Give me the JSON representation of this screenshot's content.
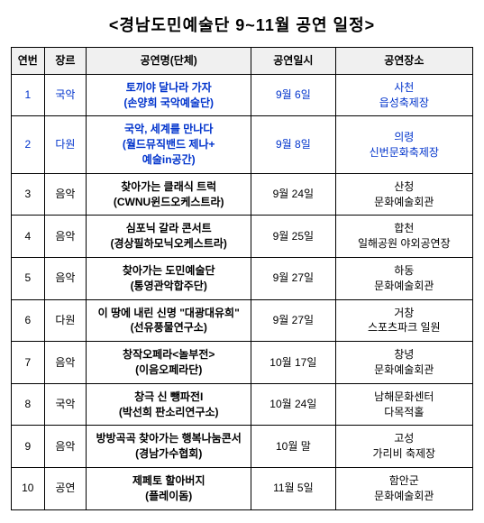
{
  "title": "<경남도민예술단 9~11월 공연 일정>",
  "columns": [
    "연번",
    "장르",
    "공연명(단체)",
    "공연일시",
    "공연장소"
  ],
  "rows": [
    {
      "no": "1",
      "genre": "국악",
      "main": "토끼야 달나라 가자",
      "sub": "(손양희 국악예술단)",
      "date": "9월 6일",
      "venueA": "사천",
      "venueB": "읍성축제장",
      "blue": true
    },
    {
      "no": "2",
      "genre": "다원",
      "main": "국악, 세계를 만나다",
      "sub": "(월드뮤직밴드 제나+\n예술in공간)",
      "date": "9월 8일",
      "venueA": "의령",
      "venueB": "신번문화축제장",
      "blue": true
    },
    {
      "no": "3",
      "genre": "음악",
      "main": "찾아가는 클래식 트럭",
      "sub": "(CWNU윈드오케스트라)",
      "date": "9월 24일",
      "venueA": "산청",
      "venueB": "문화예술회관",
      "blue": false
    },
    {
      "no": "4",
      "genre": "음악",
      "main": "심포닉 갈라 콘서트",
      "sub": "(경상필하모닉오케스트라)",
      "date": "9월 25일",
      "venueA": "합천",
      "venueB": "일해공원 야외공연장",
      "blue": false
    },
    {
      "no": "5",
      "genre": "음악",
      "main": "찾아가는 도민예술단",
      "sub": "(통영관악합주단)",
      "date": "9월 27일",
      "venueA": "하동",
      "venueB": "문화예술회관",
      "blue": false
    },
    {
      "no": "6",
      "genre": "다원",
      "main": "이 땅에 내린 신명 \"대광대유희\"",
      "sub": "(선유풍물연구소)",
      "date": "9월 27일",
      "venueA": "거창",
      "venueB": "스포츠파크 일원",
      "blue": false
    },
    {
      "no": "7",
      "genre": "음악",
      "main": "창작오페라<놀부전>",
      "sub": "(이음오페라단)",
      "date": "10월 17일",
      "venueA": "창녕",
      "venueB": "문화예술회관",
      "blue": false
    },
    {
      "no": "8",
      "genre": "국악",
      "main": "창극 신 뺑파전I",
      "sub": "(박선희 판소리연구소)",
      "date": "10월 24일",
      "venueA": "남해문화센터",
      "venueB": "다목적홀",
      "blue": false
    },
    {
      "no": "9",
      "genre": "음악",
      "main": "방방곡곡 찾아가는 행복나눔콘서",
      "sub": "(경남가수협회)",
      "date": "10월 말",
      "venueA": "고성",
      "venueB": "가리비 축제장",
      "blue": false
    },
    {
      "no": "10",
      "genre": "공연",
      "main": "제페토 할아버지",
      "sub": "(플레이돔)",
      "date": "11월 5일",
      "venueA": "함안군",
      "venueB": "문화예술회관",
      "blue": false
    }
  ]
}
